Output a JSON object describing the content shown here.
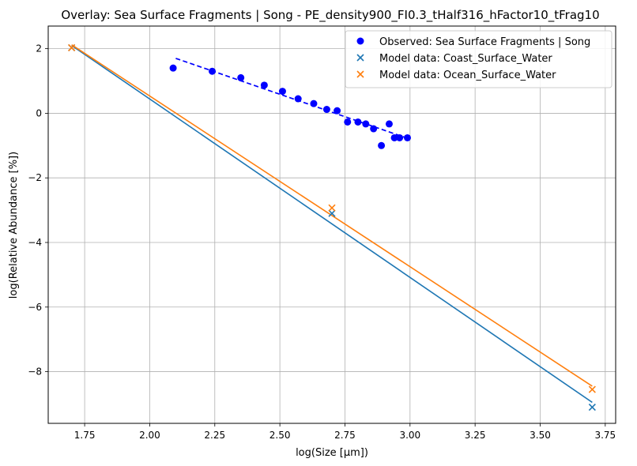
{
  "chart_data": {
    "type": "scatter",
    "title": "Overlay: Sea Surface Fragments | Song - PE_density900_FI0.3_tHalf316_hFactor10_tFrag10",
    "xlabel": "log(Size [μm])",
    "ylabel": "log(Relative Abundance [%])",
    "xlim": [
      1.61,
      3.79
    ],
    "ylim": [
      -9.6,
      2.7
    ],
    "xticks": [
      1.75,
      2.0,
      2.25,
      2.5,
      2.75,
      3.0,
      3.25,
      3.5,
      3.75
    ],
    "xtick_labels": [
      "1.75",
      "2.00",
      "2.25",
      "2.50",
      "2.75",
      "3.00",
      "3.25",
      "3.50",
      "3.75"
    ],
    "yticks": [
      2,
      0,
      -2,
      -4,
      -6,
      -8
    ],
    "ytick_labels": [
      "2",
      "0",
      "−2",
      "−4",
      "−6",
      "−8"
    ],
    "grid": true,
    "legend_position": "top-right",
    "series": [
      {
        "name": "Observed: Sea Surface Fragments | Song",
        "kind": "scatter",
        "marker": "circle",
        "color": "#0000ff",
        "x": [
          2.09,
          2.24,
          2.35,
          2.44,
          2.51,
          2.57,
          2.63,
          2.68,
          2.72,
          2.76,
          2.8,
          2.83,
          2.86,
          2.89,
          2.92,
          2.94,
          2.96,
          2.99
        ],
        "y": [
          1.4,
          1.3,
          1.1,
          0.87,
          0.68,
          0.45,
          0.3,
          0.12,
          0.08,
          -0.27,
          -0.27,
          -0.33,
          -0.48,
          -1.0,
          -0.33,
          -0.76,
          -0.76,
          -0.76
        ]
      },
      {
        "name": "Observed fit",
        "kind": "line",
        "dashed": true,
        "color": "#0000ff",
        "x": [
          2.1,
          3.0
        ],
        "y": [
          1.7,
          -0.8
        ]
      },
      {
        "name": "Model data: Coast_Surface_Water",
        "kind": "scatter",
        "marker": "x",
        "color": "#1f77b4",
        "x": [
          1.7,
          2.7,
          3.7
        ],
        "y": [
          2.03,
          -3.1,
          -9.1
        ]
      },
      {
        "name": "Coast fit",
        "kind": "line",
        "color": "#1f77b4",
        "x": [
          1.7,
          3.7
        ],
        "y": [
          2.1,
          -8.95
        ]
      },
      {
        "name": "Model data: Ocean_Surface_Water",
        "kind": "scatter",
        "marker": "x",
        "color": "#ff7f0e",
        "x": [
          1.7,
          2.7,
          3.7
        ],
        "y": [
          2.03,
          -2.93,
          -8.55
        ]
      },
      {
        "name": "Ocean fit",
        "kind": "line",
        "color": "#ff7f0e",
        "x": [
          1.7,
          3.7
        ],
        "y": [
          2.12,
          -8.45
        ]
      }
    ],
    "legend": [
      {
        "label": "Observed: Sea Surface Fragments | Song",
        "marker": "circle",
        "color": "#0000ff"
      },
      {
        "label": "Model data: Coast_Surface_Water",
        "marker": "x",
        "color": "#1f77b4"
      },
      {
        "label": "Model data: Ocean_Surface_Water",
        "marker": "x",
        "color": "#ff7f0e"
      }
    ]
  }
}
